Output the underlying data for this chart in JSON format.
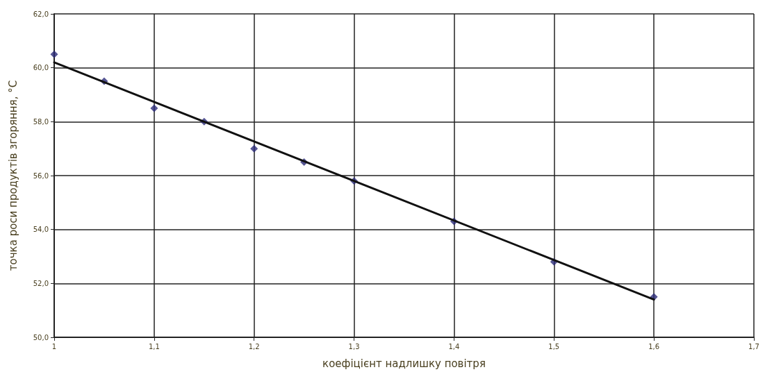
{
  "chart_data": {
    "type": "scatter",
    "xlabel": "коефіцієнт надлишку повітря",
    "ylabel": "точка роси продуктів згоряння, °С",
    "xlim": [
      1,
      1.7
    ],
    "xticks": [
      {
        "value": 1,
        "label": "1"
      },
      {
        "value": 1.1,
        "label": "1,1"
      },
      {
        "value": 1.2,
        "label": "1,2"
      },
      {
        "value": 1.3,
        "label": "1,3"
      },
      {
        "value": 1.4,
        "label": "1,4"
      },
      {
        "value": 1.5,
        "label": "1,5"
      },
      {
        "value": 1.6,
        "label": "1,6"
      },
      {
        "value": 1.7,
        "label": "1,7"
      }
    ],
    "ylim": [
      50,
      62
    ],
    "yticks": [
      {
        "value": 50,
        "label": "50,0"
      },
      {
        "value": 52,
        "label": "52,0"
      },
      {
        "value": 54,
        "label": "54,0"
      },
      {
        "value": 56,
        "label": "56,0"
      },
      {
        "value": 58,
        "label": "58,0"
      },
      {
        "value": 60,
        "label": "60,0"
      },
      {
        "value": 62,
        "label": "62,0"
      }
    ],
    "grid": true,
    "series": [
      {
        "color": "#2b2a78",
        "marker": "diamond",
        "x": [
          1,
          1.05,
          1.1,
          1.15,
          1.2,
          1.25,
          1.3,
          1.4,
          1.5,
          1.6
        ],
        "values": [
          60.5,
          59.5,
          58.5,
          58.0,
          57.0,
          56.5,
          55.8,
          54.3,
          52.8,
          51.5
        ]
      },
      {
        "type": "line",
        "color": "#111111",
        "marker": "none",
        "line_style": "solid",
        "x": [
          1,
          1.6
        ],
        "values": [
          60.2,
          51.4
        ]
      }
    ]
  }
}
